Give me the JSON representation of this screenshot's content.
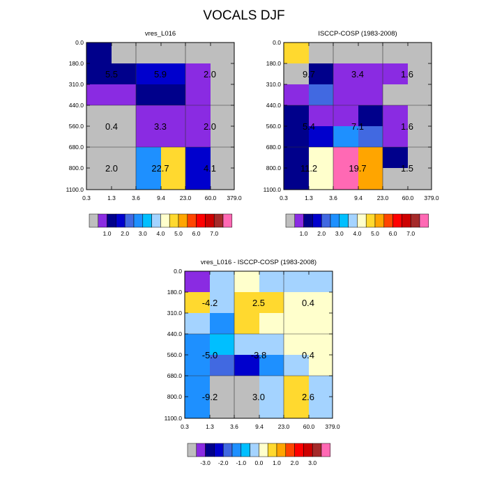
{
  "title": "VOCALS DJF",
  "palette_colors": [
    "#bebebe",
    "#8a2be2",
    "#00008b",
    "#0000cd",
    "#4169e1",
    "#1e90ff",
    "#00bfff",
    "#a4d3ff",
    "#ffffcc",
    "#ffd92f",
    "#ffa500",
    "#ff4500",
    "#ff0000",
    "#cd0000",
    "#a52a2a",
    "#ff69b4"
  ],
  "chart_data": [
    {
      "type": "heatmap",
      "title": "vres_L016",
      "x_ticks": [
        "0.3",
        "1.3",
        "3.6",
        "9.4",
        "23.0",
        "60.0",
        "379.0"
      ],
      "y_ticks": [
        "0.0",
        "180.0",
        "310.0",
        "440.0",
        "560.0",
        "680.0",
        "800.0",
        "1100.0"
      ],
      "cells": [
        [
          "#00008b",
          "#bebebe",
          "#bebebe",
          "#bebebe",
          "#bebebe",
          "#bebebe"
        ],
        [
          "#00008b",
          "#00008b",
          "#0000cd",
          "#0000cd",
          "#8a2be2",
          "#bebebe"
        ],
        [
          "#8a2be2",
          "#8a2be2",
          "#00008b",
          "#00008b",
          "#8a2be2",
          "#bebebe"
        ],
        [
          "#bebebe",
          "#bebebe",
          "#8a2be2",
          "#8a2be2",
          "#8a2be2",
          "#bebebe"
        ],
        [
          "#bebebe",
          "#bebebe",
          "#8a2be2",
          "#8a2be2",
          "#8a2be2",
          "#bebebe"
        ],
        [
          "#bebebe",
          "#bebebe",
          "#1e90ff",
          "#ffd92f",
          "#0000cd",
          "#bebebe"
        ],
        [
          "#bebebe",
          "#bebebe",
          "#1e90ff",
          "#ffd92f",
          "#0000cd",
          "#bebebe"
        ],
        [
          "#8a2be2",
          "#00008b",
          "#a52a2a",
          "#ff69b4",
          "#4169e1",
          "#bebebe"
        ]
      ],
      "box_labels": [
        [
          "5.5",
          "5.9",
          "2.0"
        ],
        [
          "0.4",
          "3.3",
          "2.0"
        ],
        [
          "2.0",
          "22.7",
          "4.1"
        ]
      ],
      "colorbar": {
        "tick_labels": [
          "1.0",
          "2.0",
          "3.0",
          "4.0",
          "5.0",
          "6.0",
          "7.0"
        ]
      }
    },
    {
      "type": "heatmap",
      "title": "ISCCP-COSP (1983-2008)",
      "x_ticks": [
        "0.3",
        "1.3",
        "3.6",
        "9.4",
        "23.0",
        "60.0",
        "379.0"
      ],
      "y_ticks": [
        "0.0",
        "180.0",
        "310.0",
        "440.0",
        "560.0",
        "680.0",
        "800.0",
        "1100.0"
      ],
      "cells": [
        [
          "#ffd92f",
          "#bebebe",
          "#bebebe",
          "#bebebe",
          "#bebebe",
          "#bebebe"
        ],
        [
          "#bebebe",
          "#00008b",
          "#8a2be2",
          "#8a2be2",
          "#8a2be2",
          "#bebebe"
        ],
        [
          "#8a2be2",
          "#4169e1",
          "#8a2be2",
          "#8a2be2",
          "#bebebe",
          "#bebebe"
        ],
        [
          "#00008b",
          "#8a2be2",
          "#8a2be2",
          "#00008b",
          "#8a2be2",
          "#bebebe"
        ],
        [
          "#00008b",
          "#0000cd",
          "#1e90ff",
          "#4169e1",
          "#8a2be2",
          "#bebebe"
        ],
        [
          "#00008b",
          "#ffffcc",
          "#ff69b4",
          "#ffa500",
          "#00008b",
          "#bebebe"
        ],
        [
          "#00008b",
          "#ffffcc",
          "#ff69b4",
          "#ffa500",
          "#bebebe",
          "#bebebe"
        ],
        [
          "#0000cd",
          "#ffffcc",
          "#ffffcc",
          "#00008b",
          "#bebebe",
          "#bebebe"
        ]
      ],
      "box_labels": [
        [
          "9.7",
          "3.4",
          "1.6"
        ],
        [
          "5.4",
          "7.1",
          "1.6"
        ],
        [
          "11.2",
          "19.7",
          "1.5"
        ]
      ],
      "colorbar": {
        "tick_labels": [
          "1.0",
          "2.0",
          "3.0",
          "4.0",
          "5.0",
          "6.0",
          "7.0"
        ]
      }
    },
    {
      "type": "heatmap",
      "title": "vres_L016 - ISCCP-COSP (1983-2008)",
      "x_ticks": [
        "0.3",
        "1.3",
        "3.6",
        "9.4",
        "23.0",
        "60.0",
        "379.0"
      ],
      "y_ticks": [
        "0.0",
        "180.0",
        "310.0",
        "440.0",
        "560.0",
        "680.0",
        "800.0",
        "1100.0"
      ],
      "cells": [
        [
          "#8a2be2",
          "#a4d3ff",
          "#ffffcc",
          "#a4d3ff",
          "#a4d3ff",
          "#a4d3ff"
        ],
        [
          "#ffd92f",
          "#a4d3ff",
          "#ffd92f",
          "#ffd92f",
          "#ffffcc",
          "#ffffcc"
        ],
        [
          "#a4d3ff",
          "#1e90ff",
          "#ffd92f",
          "#ffffcc",
          "#ffffcc",
          "#ffffcc"
        ],
        [
          "#1e90ff",
          "#00bfff",
          "#a4d3ff",
          "#a4d3ff",
          "#ffffcc",
          "#ffffcc"
        ],
        [
          "#1e90ff",
          "#4169e1",
          "#0000cd",
          "#1e90ff",
          "#a4d3ff",
          "#ffffcc"
        ],
        [
          "#1e90ff",
          "#bebebe",
          "#bebebe",
          "#a4d3ff",
          "#ffd92f",
          "#a4d3ff"
        ],
        [
          "#1e90ff",
          "#bebebe",
          "#bebebe",
          "#a4d3ff",
          "#ffd92f",
          "#a4d3ff"
        ],
        [
          "#00bfff",
          "#8a2be2",
          "#cd0000",
          "#ff69b4",
          "#ffa500",
          "#a4d3ff"
        ]
      ],
      "box_labels": [
        [
          "-4.2",
          "2.5",
          "0.4"
        ],
        [
          "-5.0",
          "-3.8",
          "0.4"
        ],
        [
          "-9.2",
          "3.0",
          "2.6"
        ]
      ],
      "colorbar": {
        "tick_labels": [
          "-3.0",
          "-2.0",
          "-1.0",
          "0.0",
          "1.0",
          "2.0",
          "3.0"
        ]
      }
    }
  ]
}
